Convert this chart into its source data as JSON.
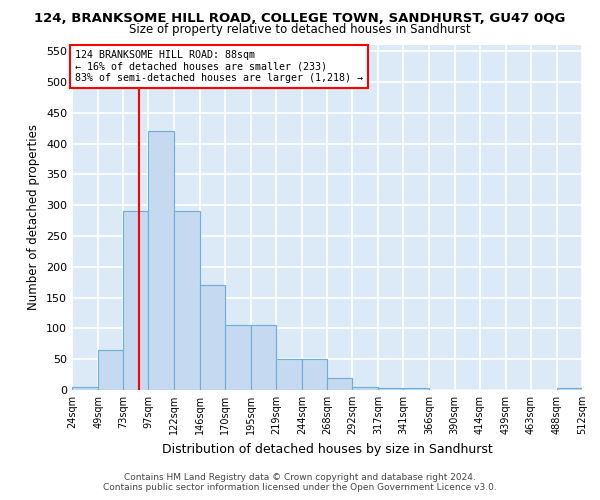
{
  "title": "124, BRANKSOME HILL ROAD, COLLEGE TOWN, SANDHURST, GU47 0QG",
  "subtitle": "Size of property relative to detached houses in Sandhurst",
  "xlabel": "Distribution of detached houses by size in Sandhurst",
  "ylabel": "Number of detached properties",
  "bar_color": "#c5d9f0",
  "bar_edge_color": "#6baed6",
  "background_color": "#dce9f7",
  "grid_color": "#ffffff",
  "red_line_x": 88,
  "annotation_text": "124 BRANKSOME HILL ROAD: 88sqm\n← 16% of detached houses are smaller (233)\n83% of semi-detached houses are larger (1,218) →",
  "footer_line1": "Contains HM Land Registry data © Crown copyright and database right 2024.",
  "footer_line2": "Contains public sector information licensed under the Open Government Licence v3.0.",
  "bin_edges": [
    24,
    49,
    73,
    97,
    122,
    146,
    170,
    195,
    219,
    244,
    268,
    292,
    317,
    341,
    366,
    390,
    414,
    439,
    463,
    488,
    512
  ],
  "bin_labels": [
    "24sqm",
    "49sqm",
    "73sqm",
    "97sqm",
    "122sqm",
    "146sqm",
    "170sqm",
    "195sqm",
    "219sqm",
    "244sqm",
    "268sqm",
    "292sqm",
    "317sqm",
    "341sqm",
    "366sqm",
    "390sqm",
    "414sqm",
    "439sqm",
    "463sqm",
    "488sqm",
    "512sqm"
  ],
  "counts": [
    5,
    65,
    290,
    420,
    290,
    170,
    105,
    105,
    50,
    50,
    20,
    5,
    3,
    3,
    0,
    0,
    0,
    0,
    0,
    3,
    3
  ],
  "ylim": [
    0,
    560
  ],
  "yticks": [
    0,
    50,
    100,
    150,
    200,
    250,
    300,
    350,
    400,
    450,
    500,
    550
  ]
}
